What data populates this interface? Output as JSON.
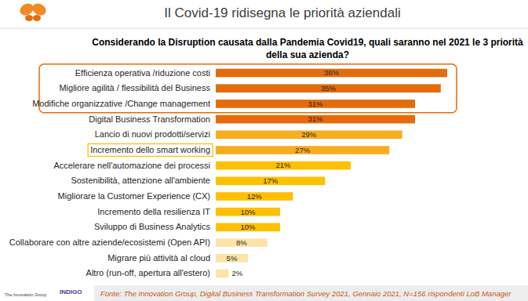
{
  "chart_data": {
    "type": "bar",
    "orientation": "horizontal",
    "title": "Il Covid-19 ridisegna le priorità aziendali",
    "subtitle": [
      "Considerando la Disruption causata dalla Pandemia Covid19, quali saranno nel 2021 le 3 priorità",
      "della sua azienda?"
    ],
    "categories": [
      "Efficienza operativa /riduzione costi",
      "Migliore agilità / flessibilità del Business",
      "Modifiche organizzative /Change management",
      "Digital Business Transformation",
      "Lancio di nuovi prodotti/servizi",
      "Incremento dello smart working",
      "Accelerare nell'automazione dei processi",
      "Sostenibilità, attenzione all'ambiente",
      "Migliorare la Customer Experience (CX)",
      "Incremento della resilienza IT",
      "Sviluppo di Business Analytics",
      "Collaborare con altre aziende/ecosistemi (Open API)",
      "Migrare più attività al cloud",
      "Altro (run-off, apertura all'estero)"
    ],
    "values": [
      36,
      35,
      31,
      31,
      29,
      27,
      21,
      17,
      12,
      10,
      10,
      8,
      5,
      2
    ],
    "value_labels": [
      "36%",
      "35%",
      "31%",
      "31%",
      "29%",
      "27%",
      "21%",
      "17%",
      "12%",
      "10%",
      "10%",
      "8%",
      "5%",
      "2%"
    ],
    "colors": [
      "#E46C0A",
      "#E46C0A",
      "#E46C0A",
      "#E46C0A",
      "#F7AE1E",
      "#F7AE1E",
      "#FFC000",
      "#FFC000",
      "#FFC000",
      "#FFC000",
      "#FFC000",
      "#FDE3A7",
      "#FDE3A7",
      "#FDE3A7"
    ],
    "xlim": [
      0,
      36
    ],
    "data_labels": true,
    "grid": false,
    "tick_labels": "y",
    "source": "Fonte: The Innovation Group, Digital Business Transformation Survey 2021, Gennaio 2021, N=156 rispondenti LoB Manager",
    "logos": [
      "The Innovation Group",
      "INDIGO"
    ]
  }
}
